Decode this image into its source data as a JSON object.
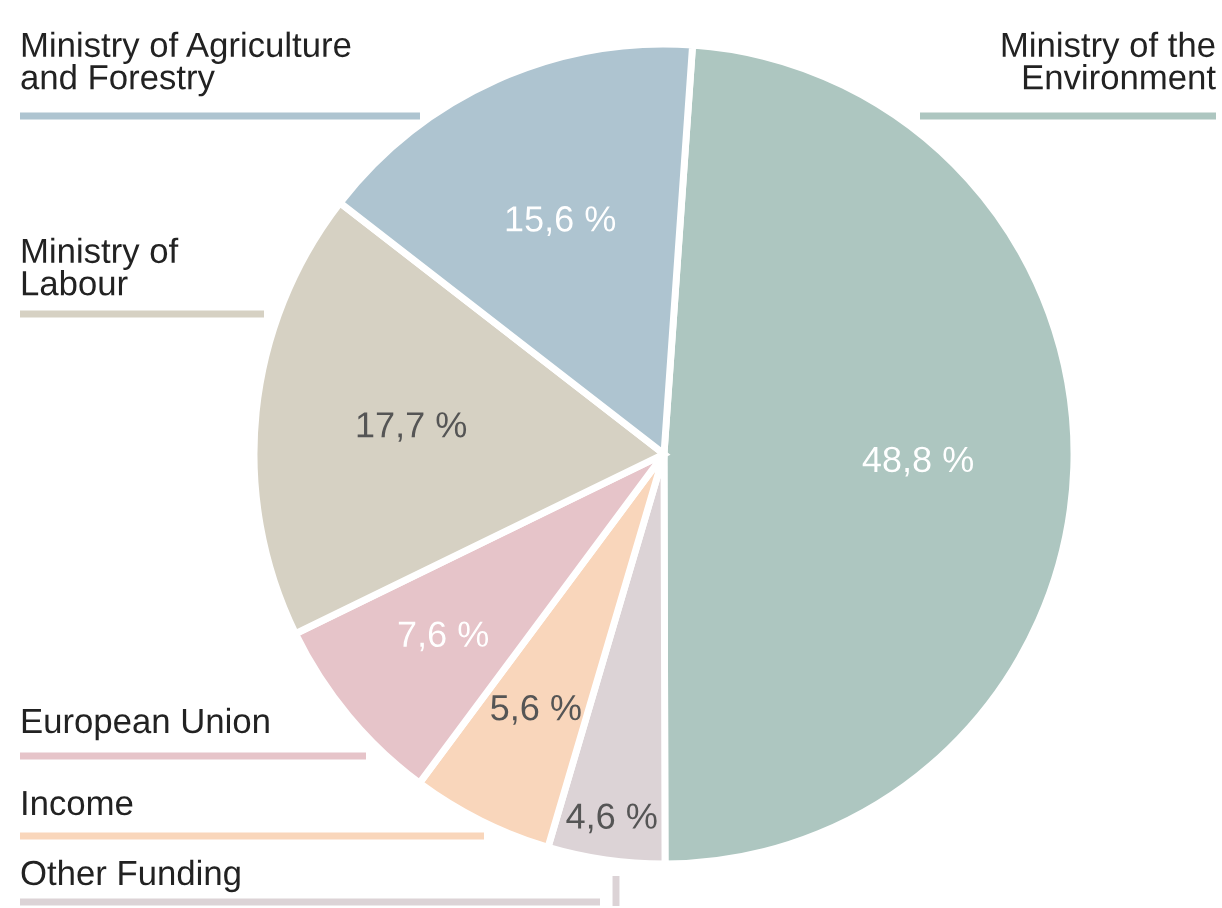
{
  "chart_data": {
    "type": "pie",
    "categories": [
      "Ministry of the\nEnvironment",
      "Other Funding",
      "Income",
      "European Union",
      "Ministry of\nLabour",
      "Ministry of Agriculture\nand Forestry"
    ],
    "values": [
      48.8,
      4.6,
      5.6,
      7.6,
      17.7,
      15.6
    ],
    "value_labels": [
      "48,8 %",
      "4,6 %",
      "5,6 %",
      "7,6 %",
      "17,7 %",
      "15,6 %"
    ],
    "colors": [
      "#adc6c0",
      "#dcd3d6",
      "#f9d6bb",
      "#e6c4c9",
      "#d6d1c3",
      "#aec4d0"
    ],
    "legend": false
  }
}
